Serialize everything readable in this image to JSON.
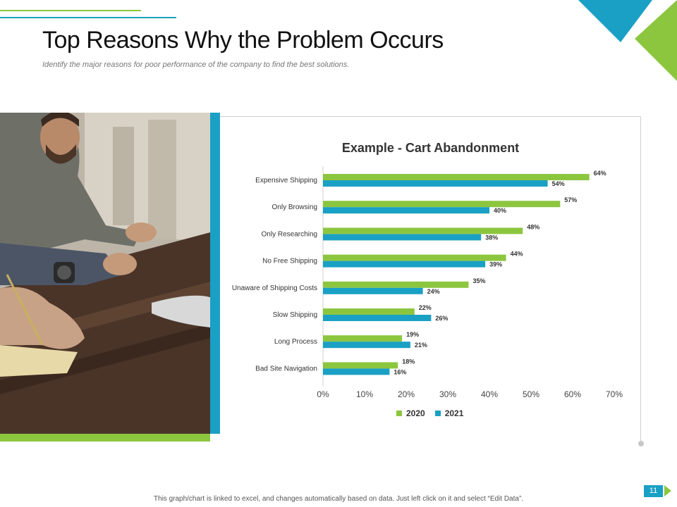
{
  "page": {
    "title": "Top Reasons Why the Problem Occurs",
    "subtitle": "Identify the major reasons for poor performance of the company to find the best solutions.",
    "footer": "This graph/chart is linked to excel, and changes automatically  based on data. Just left click on it and select “Edit Data”.",
    "page_number": "11"
  },
  "colors": {
    "green": "#8cc63f",
    "teal": "#1aa0c4"
  },
  "chart_data": {
    "type": "bar",
    "orientation": "horizontal",
    "title": "Example - Cart Abandonment",
    "categories": [
      "Expensive Shipping",
      "Only Browsing",
      "Only Researching",
      "No Free Shipping",
      "Unaware of Shipping Costs",
      "Slow Shipping",
      "Long Process",
      "Bad Site Navigation"
    ],
    "series": [
      {
        "name": "2020",
        "color": "#8cc63f",
        "values": [
          64,
          57,
          48,
          44,
          35,
          22,
          19,
          18
        ]
      },
      {
        "name": "2021",
        "color": "#1aa0c4",
        "values": [
          54,
          40,
          38,
          39,
          24,
          26,
          21,
          16
        ]
      }
    ],
    "value_suffix": "%",
    "xlim": [
      0,
      70
    ],
    "xticks": [
      "0%",
      "10%",
      "20%",
      "30%",
      "40%",
      "50%",
      "60%",
      "70%"
    ],
    "grid": false,
    "legend_position": "bottom"
  }
}
